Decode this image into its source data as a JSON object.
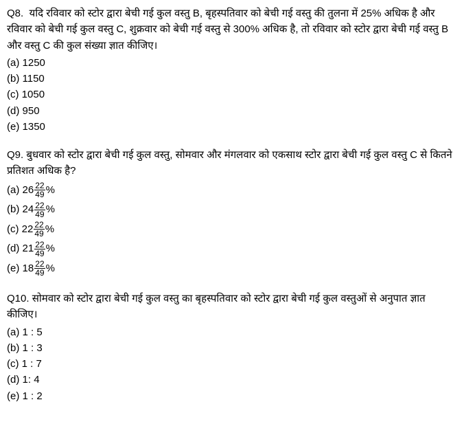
{
  "questions": [
    {
      "number": "Q8.",
      "text": "यदि रविवार को स्टोर द्वारा बेची गई कुल वस्तु B, बृहस्पतिवार को बेची गई वस्तु की तुलना में 25% अधिक है और रविवार को बेची गई कुल वस्तु C, शुक्रवार को बेची गई वस्तु से 300% अधिक है, तो रविवार को स्टोर द्वारा बेची गई वस्तु B और वस्तु C की कुल संख्या ज्ञात कीजिए।",
      "options": [
        {
          "label": "(a)",
          "value": "1250"
        },
        {
          "label": "(b)",
          "value": "1150"
        },
        {
          "label": "(c)",
          "value": "1050"
        },
        {
          "label": "(d)",
          "value": "950"
        },
        {
          "label": "(e)",
          "value": "1350"
        }
      ]
    },
    {
      "number": "Q9.",
      "text": "बुधवार को स्टोर द्वारा बेची गई कुल वस्तु, सोमवार और मंगलवार को एकसाथ स्टोर द्वारा बेची गई कुल वस्तु C से कितने प्रतिशत अधिक है?",
      "options": [
        {
          "label": "(a)",
          "whole": "26",
          "num": "22",
          "den": "49",
          "suffix": "%"
        },
        {
          "label": "(b)",
          "whole": "24",
          "num": "22",
          "den": "49",
          "suffix": "%"
        },
        {
          "label": "(c)",
          "whole": "22",
          "num": "22",
          "den": "49",
          "suffix": "%"
        },
        {
          "label": "(d)",
          "whole": "21",
          "num": "22",
          "den": "49",
          "suffix": "%"
        },
        {
          "label": "(e)",
          "whole": "18",
          "num": "22",
          "den": "49",
          "suffix": "%"
        }
      ]
    },
    {
      "number": "Q10.",
      "text": "सोमवार को स्टोर द्वारा बेची गई कुल वस्तु का बृहस्पतिवार को स्टोर द्वारा बेची गई कुल वस्तुओं से अनुपात ज्ञात कीजिए।",
      "options": [
        {
          "label": "(a)",
          "value": "1 : 5"
        },
        {
          "label": "(b)",
          "value": "1 : 3"
        },
        {
          "label": "(c)",
          "value": "1 : 7"
        },
        {
          "label": "(d)",
          "value": "1: 4"
        },
        {
          "label": "(e)",
          "value": "1 : 2"
        }
      ]
    }
  ]
}
